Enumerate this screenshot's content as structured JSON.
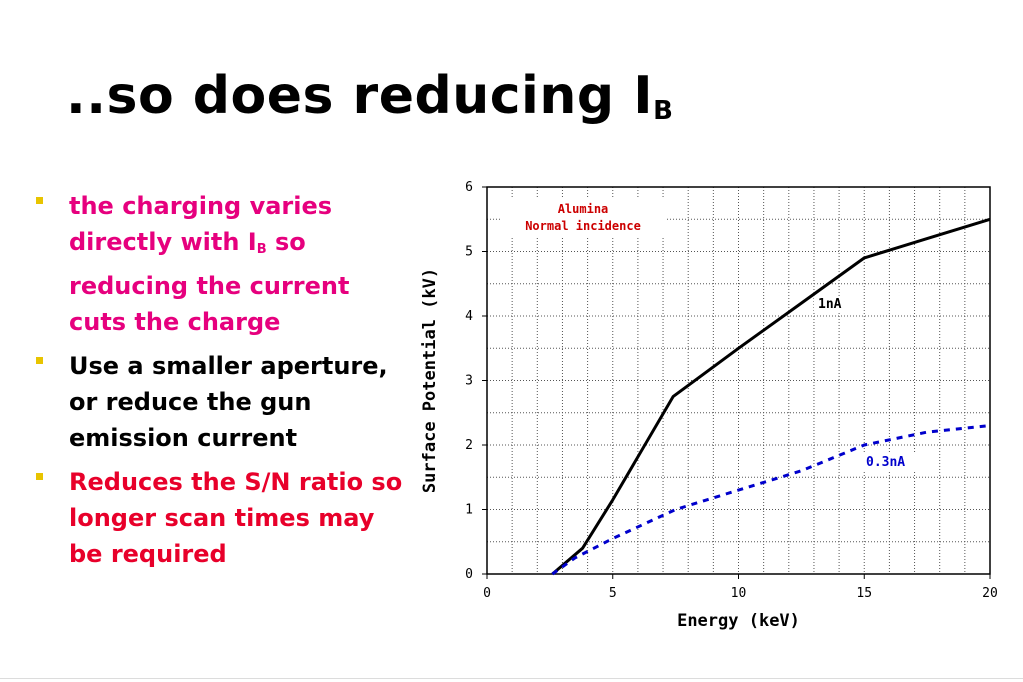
{
  "slide": {
    "title_main": "..so does reducing I",
    "title_sub": "B",
    "bullets": [
      {
        "color": "#e6007e",
        "parts": [
          "the charging varies directly with I",
          "B",
          " so reducing the current cuts the charge"
        ]
      },
      {
        "color": "#000000",
        "parts": [
          "Use a smaller aperture, or reduce the gun emission current",
          "",
          ""
        ]
      },
      {
        "color": "#e8002a",
        "parts": [
          "Reduces the  S/N ratio so longer scan times may be required",
          "",
          ""
        ]
      }
    ]
  },
  "chart_data": {
    "type": "line",
    "xlabel": "Energy (keV)",
    "ylabel": "Surface Potential (kV)",
    "xlim": [
      0,
      20
    ],
    "ylim": [
      0,
      6
    ],
    "xticks": [
      0,
      5,
      10,
      15,
      20
    ],
    "yticks": [
      0,
      1,
      2,
      3,
      4,
      5,
      6
    ],
    "grid": true,
    "annotation": {
      "lines": [
        "Alumina",
        "Normal incidence"
      ],
      "color": "#cc0000"
    },
    "series": [
      {
        "name": "1nA",
        "color": "#000000",
        "style": "solid",
        "points": [
          [
            2.6,
            0
          ],
          [
            3.8,
            0.4
          ],
          [
            5,
            1.15
          ],
          [
            7.4,
            2.75
          ],
          [
            10,
            3.5
          ],
          [
            12.5,
            4.2
          ],
          [
            15,
            4.9
          ],
          [
            17.5,
            5.2
          ],
          [
            20,
            5.5
          ]
        ]
      },
      {
        "name": "0.3nA",
        "color": "#0000cc",
        "style": "dashed",
        "points": [
          [
            2.6,
            0
          ],
          [
            3.5,
            0.25
          ],
          [
            5,
            0.55
          ],
          [
            7.5,
            1.0
          ],
          [
            10,
            1.3
          ],
          [
            12.5,
            1.6
          ],
          [
            15,
            2.0
          ],
          [
            17.5,
            2.2
          ],
          [
            20,
            2.3
          ]
        ]
      }
    ]
  }
}
